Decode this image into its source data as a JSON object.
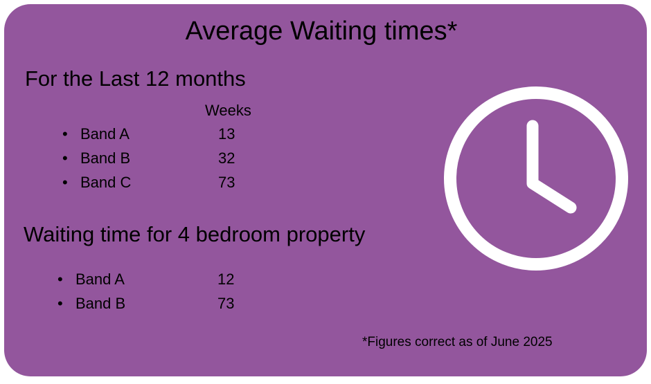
{
  "title": "Average Waiting times*",
  "section1": {
    "heading": "For the Last 12 months",
    "column_header": "Weeks",
    "rows": [
      {
        "label": "Band A",
        "value": "13"
      },
      {
        "label": "Band B",
        "value": "32"
      },
      {
        "label": "Band C",
        "value": "73"
      }
    ]
  },
  "section2": {
    "heading": "Waiting time for 4 bedroom property",
    "rows": [
      {
        "label": "Band A",
        "value": "12"
      },
      {
        "label": "Band B",
        "value": "73"
      }
    ]
  },
  "footnote": "*Figures correct as of June 2025",
  "colors": {
    "background": "#93569d",
    "foreground": "#ffffff"
  },
  "icon": "clock-icon"
}
